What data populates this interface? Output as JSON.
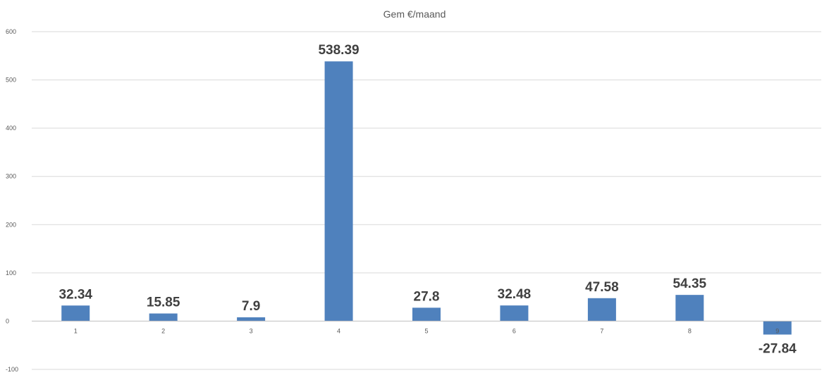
{
  "colors": {
    "bar": "#4f81bd",
    "grid": "#d9d9d9",
    "axis": "#bfbfbf",
    "text": "#595959",
    "label": "#404040"
  },
  "chart_data": {
    "type": "bar",
    "title": "Gem €/maand",
    "xlabel": "",
    "ylabel": "",
    "categories": [
      "1",
      "2",
      "3",
      "4",
      "5",
      "6",
      "7",
      "8",
      "9"
    ],
    "values": [
      32.34,
      15.85,
      7.9,
      538.39,
      27.8,
      32.48,
      47.58,
      54.35,
      -27.84
    ],
    "data_labels": [
      "32.34",
      "15.85",
      "7.9",
      "538.39",
      "27.8",
      "32.48",
      "47.58",
      "54.35",
      "-27.84"
    ],
    "ylim": [
      -100,
      600
    ],
    "yticks": [
      -100,
      0,
      100,
      200,
      300,
      400,
      500,
      600
    ],
    "ytick_labels": [
      "-100",
      "0",
      "100",
      "200",
      "300",
      "400",
      "500",
      "600"
    ],
    "grid": true,
    "legend": "none"
  }
}
